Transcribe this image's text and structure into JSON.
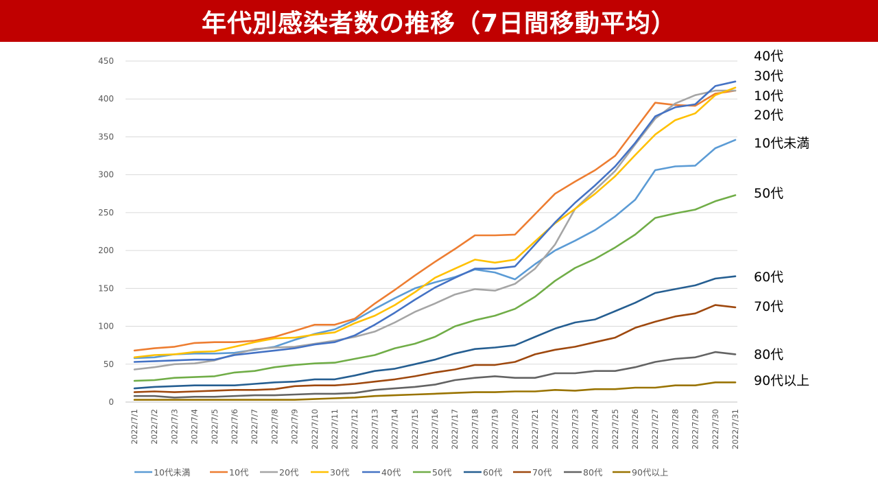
{
  "title": "年代別感染者数の推移（7日間移動平均）",
  "chart_data": {
    "type": "line",
    "title": "年代別感染者数の推移（7日間移動平均）",
    "xlabel": "",
    "ylabel": "",
    "ylim": [
      0,
      450
    ],
    "yticks": [
      0,
      50,
      100,
      150,
      200,
      250,
      300,
      350,
      400,
      450
    ],
    "grid": true,
    "legend": "bottom",
    "categories": [
      "2022/7/1",
      "2022/7/2",
      "2022/7/3",
      "2022/7/4",
      "2022/7/5",
      "2022/7/6",
      "2022/7/7",
      "2022/7/8",
      "2022/7/9",
      "2022/7/10",
      "2022/7/11",
      "2022/7/12",
      "2022/7/13",
      "2022/7/14",
      "2022/7/15",
      "2022/7/16",
      "2022/7/17",
      "2022/7/18",
      "2022/7/19",
      "2022/7/20",
      "2022/7/21",
      "2022/7/22",
      "2022/7/23",
      "2022/7/24",
      "2022/7/25",
      "2022/7/26",
      "2022/7/27",
      "2022/7/28",
      "2022/7/29",
      "2022/7/30",
      "2022/7/31"
    ],
    "series": [
      {
        "name": "10代未満",
        "label": "10代未満",
        "color": "#5b9bd5",
        "values": [
          58,
          59,
          63,
          64,
          64,
          65,
          69,
          73,
          82,
          90,
          96,
          108,
          123,
          137,
          150,
          158,
          165,
          175,
          171,
          162,
          182,
          200,
          213,
          227,
          245,
          267,
          306,
          311,
          312,
          335,
          346
        ]
      },
      {
        "name": "10代",
        "label": "10代",
        "color": "#ed7d31",
        "values": [
          68,
          71,
          73,
          78,
          79,
          79,
          81,
          86,
          94,
          102,
          102,
          110,
          130,
          148,
          167,
          185,
          202,
          220,
          220,
          221,
          248,
          275,
          291,
          306,
          325,
          360,
          395,
          392,
          391,
          407,
          411
        ]
      },
      {
        "name": "20代",
        "label": "20代",
        "color": "#a5a5a5",
        "values": [
          43,
          46,
          50,
          51,
          55,
          63,
          70,
          72,
          73,
          77,
          81,
          86,
          93,
          105,
          119,
          130,
          142,
          149,
          147,
          156,
          176,
          208,
          255,
          280,
          305,
          340,
          374,
          394,
          405,
          411,
          411
        ]
      },
      {
        "name": "30代",
        "label": "30代",
        "color": "#ffc000",
        "values": [
          59,
          62,
          63,
          66,
          67,
          73,
          79,
          84,
          85,
          89,
          92,
          104,
          114,
          128,
          145,
          164,
          176,
          188,
          184,
          188,
          212,
          236,
          255,
          275,
          298,
          326,
          353,
          372,
          381,
          405,
          415
        ]
      },
      {
        "name": "40代",
        "label": "40代",
        "color": "#4472c4",
        "values": [
          53,
          54,
          55,
          56,
          56,
          62,
          65,
          68,
          71,
          76,
          79,
          88,
          102,
          118,
          135,
          151,
          164,
          176,
          176,
          179,
          208,
          237,
          263,
          286,
          311,
          342,
          377,
          389,
          393,
          417,
          423
        ]
      },
      {
        "name": "50代",
        "label": "50代",
        "color": "#70ad47",
        "values": [
          28,
          29,
          32,
          33,
          34,
          39,
          41,
          46,
          49,
          51,
          52,
          57,
          62,
          71,
          77,
          86,
          100,
          108,
          114,
          123,
          139,
          160,
          177,
          189,
          204,
          221,
          243,
          249,
          254,
          265,
          273
        ]
      },
      {
        "name": "60代",
        "label": "60代",
        "color": "#255e91",
        "values": [
          18,
          20,
          21,
          22,
          22,
          22,
          24,
          26,
          27,
          30,
          30,
          35,
          41,
          44,
          50,
          56,
          64,
          70,
          72,
          75,
          86,
          97,
          105,
          109,
          120,
          131,
          144,
          149,
          154,
          163,
          166
        ]
      },
      {
        "name": "70代",
        "label": "70代",
        "color": "#9e480e",
        "values": [
          13,
          14,
          13,
          14,
          15,
          16,
          16,
          17,
          21,
          22,
          22,
          24,
          27,
          30,
          34,
          39,
          43,
          49,
          49,
          53,
          63,
          69,
          73,
          79,
          85,
          98,
          106,
          113,
          117,
          128,
          125
        ]
      },
      {
        "name": "80代",
        "label": "80代",
        "color": "#636363",
        "values": [
          8,
          8,
          6,
          7,
          7,
          8,
          9,
          9,
          10,
          11,
          11,
          12,
          16,
          18,
          20,
          23,
          29,
          32,
          34,
          32,
          32,
          38,
          38,
          41,
          41,
          46,
          53,
          57,
          59,
          66,
          63
        ]
      },
      {
        "name": "90代以上",
        "label": "90代以上",
        "color": "#997300",
        "values": [
          3,
          3,
          3,
          3,
          3,
          3,
          3,
          3,
          3,
          4,
          5,
          6,
          8,
          9,
          10,
          11,
          12,
          13,
          13,
          14,
          14,
          16,
          15,
          17,
          17,
          19,
          19,
          22,
          22,
          26,
          26
        ]
      }
    ],
    "right_labels": [
      "40代",
      "30代",
      "10代",
      "20代",
      "10代未満",
      "50代",
      "60代",
      "70代",
      "80代",
      "90代以上"
    ]
  }
}
